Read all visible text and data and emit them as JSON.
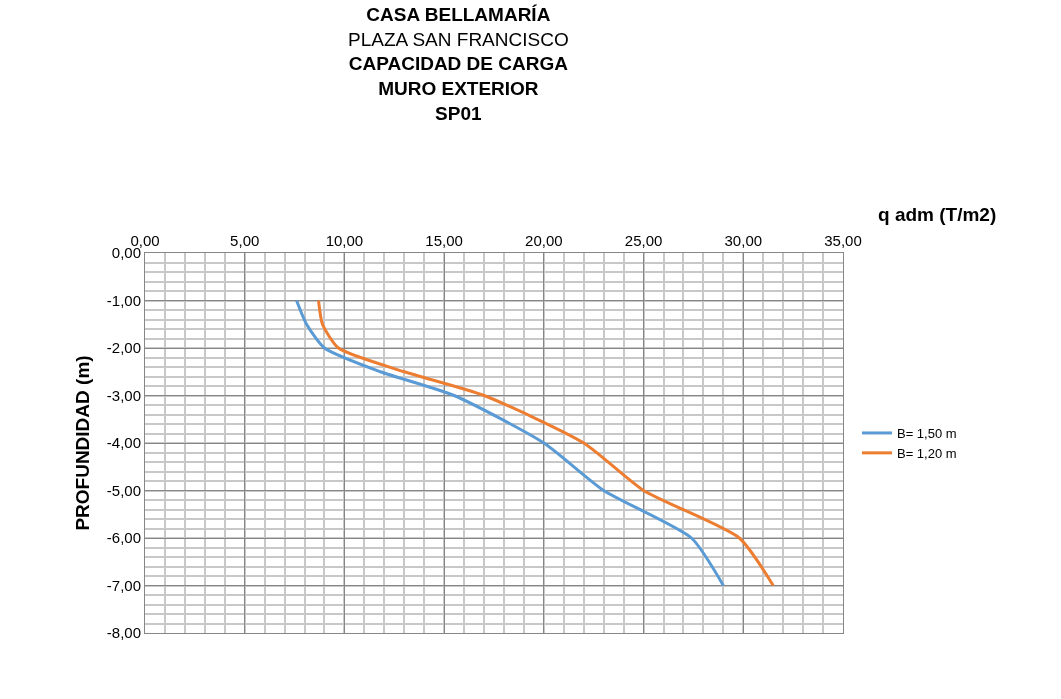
{
  "chart_data": {
    "type": "line",
    "title": "CASA BELLAMARÍA\nPLAZA SAN FRANCISCO\nCAPACIDAD DE CARGA\nMURO EXTERIOR\nSP01",
    "xlabel": "q adm (T/m2)",
    "ylabel": "PROFUNDIDAD (m)",
    "series": [
      {
        "name": "B= 1,50 m",
        "color": "#5b9bd5",
        "x": [
          7.6,
          8.1,
          9.0,
          11.8,
          15.5,
          20.0,
          23.0,
          27.4,
          29.0
        ],
        "values": [
          -1,
          -1.5,
          -2,
          -2.5,
          -3,
          -4,
          -5,
          -6,
          -7
        ]
      },
      {
        "name": "B= 1,20 m",
        "color": "#ed7d31",
        "x": [
          8.7,
          8.9,
          9.7,
          13.0,
          17.0,
          22.0,
          25.0,
          29.8,
          31.5
        ],
        "values": [
          -1,
          -1.5,
          -2,
          -2.5,
          -3,
          -4,
          -5,
          -6,
          -7
        ]
      }
    ],
    "xlim": [
      0,
      35
    ],
    "xticks": [
      {
        "value": 0,
        "label": "0,00"
      },
      {
        "value": 5,
        "label": "5,00"
      },
      {
        "value": 10,
        "label": "10,00"
      },
      {
        "value": 15,
        "label": "15,00"
      },
      {
        "value": 20,
        "label": "20,00"
      },
      {
        "value": 25,
        "label": "25,00"
      },
      {
        "value": 30,
        "label": "30,00"
      },
      {
        "value": 35,
        "label": "35,00"
      }
    ],
    "ylim": [
      -8,
      0
    ],
    "yticks": [
      {
        "value": 0,
        "label": "0,00"
      },
      {
        "value": -1,
        "label": "-1,00"
      },
      {
        "value": -2,
        "label": "-2,00"
      },
      {
        "value": -3,
        "label": "-3,00"
      },
      {
        "value": -4,
        "label": "-4,00"
      },
      {
        "value": -5,
        "label": "-5,00"
      },
      {
        "value": -6,
        "label": "-6,00"
      },
      {
        "value": -7,
        "label": "-7,00"
      },
      {
        "value": -8,
        "label": "-8,00"
      }
    ],
    "grid": true,
    "legend": "right",
    "marker": "none",
    "line_style": "solid"
  }
}
